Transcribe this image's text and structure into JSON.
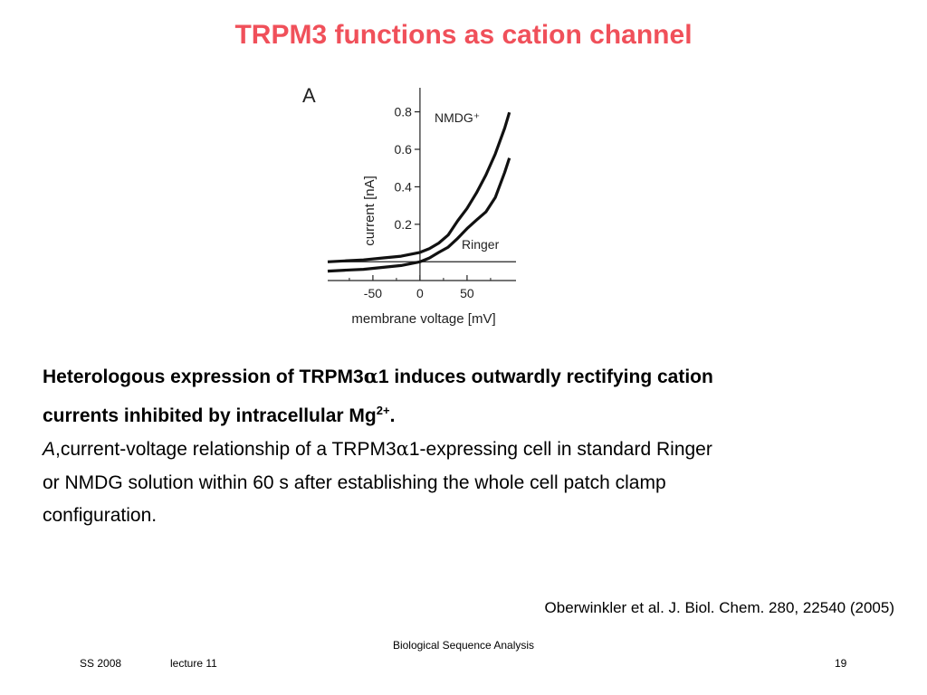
{
  "slide": {
    "title": "TRPM3 functions as cation channel",
    "caption": {
      "bold_line1": "Heterologous expression of TRPM3",
      "bold_alpha": "α",
      "bold_line1_end": "1 induces outwardly rectifying cation",
      "bold_line2": "currents inhibited by intracellular Mg",
      "bold_sup": "2+",
      "bold_period": ".",
      "panel_letter": "A",
      "text_a": ",current-voltage relationship of a TRPM3",
      "text_alpha": "α",
      "text_b": "1-expressing cell in standard Ringer",
      "text_c": "or NMDG solution within 60 s after establishing the whole cell patch clamp",
      "text_d": "configuration."
    },
    "citation": "Oberwinkler et al. J. Biol. Chem. 280, 22540 (2005)",
    "footer": {
      "center": "Biological Sequence Analysis",
      "left1": "SS 2008",
      "left2": "lecture 11",
      "page": "19"
    }
  },
  "chart_data": {
    "type": "line",
    "panel_label": "A",
    "xlabel": "membrane voltage [mV]",
    "ylabel": "current [nA]",
    "xlim": [
      -98,
      102
    ],
    "ylim": [
      -0.1,
      0.88
    ],
    "xticks": [
      -50,
      0,
      50
    ],
    "xtick_labels": [
      "-50",
      "0",
      "50"
    ],
    "yticks": [
      0.2,
      0.4,
      0.6,
      0.8
    ],
    "ytick_labels": [
      "0.2",
      "0.4",
      "0.6",
      "0.8"
    ],
    "grid": false,
    "series": [
      {
        "name": "NMDG⁺",
        "x": [
          -98,
          -80,
          -60,
          -40,
          -20,
          0,
          10,
          20,
          30,
          40,
          50,
          60,
          70,
          80,
          90,
          95
        ],
        "y": [
          0.0,
          0.005,
          0.01,
          0.02,
          0.03,
          0.05,
          0.07,
          0.1,
          0.15,
          0.22,
          0.28,
          0.36,
          0.46,
          0.58,
          0.72,
          0.8
        ]
      },
      {
        "name": "Ringer",
        "x": [
          -98,
          -80,
          -60,
          -40,
          -20,
          0,
          10,
          20,
          30,
          40,
          50,
          60,
          70,
          80,
          90,
          95
        ],
        "y": [
          -0.05,
          -0.045,
          -0.04,
          -0.03,
          -0.02,
          0.0,
          0.02,
          0.05,
          0.08,
          0.12,
          0.17,
          0.22,
          0.27,
          0.35,
          0.48,
          0.55
        ]
      }
    ]
  }
}
